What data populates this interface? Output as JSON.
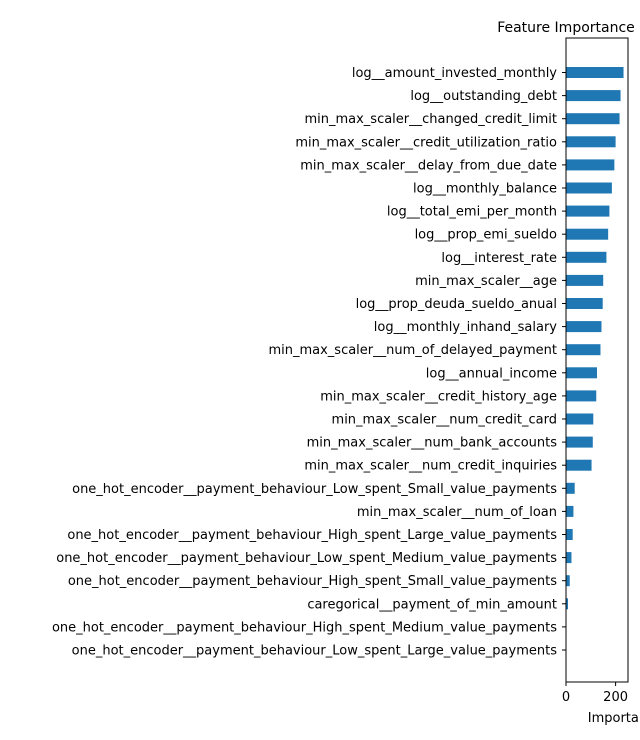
{
  "chart_data": {
    "type": "bar",
    "orientation": "horizontal",
    "title": "Feature Importance",
    "xlabel": "Importance",
    "ylabel": "",
    "xlim": [
      0,
      250
    ],
    "xticks": [
      0,
      200
    ],
    "grid": false,
    "bar_color": "#1f77b4",
    "categories": [
      "log__amount_invested_monthly",
      "log__outstanding_debt",
      "min_max_scaler__changed_credit_limit",
      "min_max_scaler__credit_utilization_ratio",
      "min_max_scaler__delay_from_due_date",
      "log__monthly_balance",
      "log__total_emi_per_month",
      "log__prop_emi_sueldo",
      "log__interest_rate",
      "min_max_scaler__age",
      "log__prop_deuda_sueldo_anual",
      "log__monthly_inhand_salary",
      "min_max_scaler__num_of_delayed_payment",
      "log__annual_income",
      "min_max_scaler__credit_history_age",
      "min_max_scaler__num_credit_card",
      "min_max_scaler__num_bank_accounts",
      "min_max_scaler__num_credit_inquiries",
      "one_hot_encoder__payment_behaviour_Low_spent_Small_value_payments",
      "min_max_scaler__num_of_loan",
      "one_hot_encoder__payment_behaviour_High_spent_Large_value_payments",
      "one_hot_encoder__payment_behaviour_Low_spent_Medium_value_payments",
      "one_hot_encoder__payment_behaviour_High_spent_Small_value_payments",
      "caregorical__payment_of_min_amount",
      "one_hot_encoder__payment_behaviour_High_spent_Medium_value_payments",
      "one_hot_encoder__payment_behaviour_Low_spent_Large_value_payments"
    ],
    "values": [
      232,
      220,
      216,
      200,
      195,
      185,
      175,
      170,
      163,
      150,
      148,
      143,
      139,
      125,
      122,
      110,
      108,
      103,
      35,
      30,
      27,
      22,
      15,
      8,
      2,
      1
    ]
  }
}
